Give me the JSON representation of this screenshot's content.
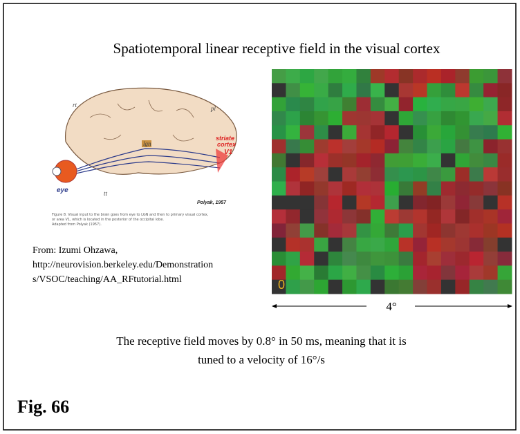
{
  "header": {
    "title": "Spatiotemporal linear receptive field in the visual cortex"
  },
  "brain_figure": {
    "labels": {
      "rt": "rt",
      "pl": "pl",
      "lgn": "lgn",
      "tt": "tt",
      "eye": "eye",
      "striate": "striate",
      "cortex": "cortex",
      "v1": "V1",
      "source": "Polyak, 1957"
    },
    "caption": [
      "Figure 8. Visual input to the brain goes from eye to LGN and then to primary visual cortex,",
      "or area V1, which is located in the posterior of the occipital lobe.",
      "Adapted from Polyak (1957)."
    ]
  },
  "credit": {
    "lines": [
      "From: Izumi Ohzawa,",
      "http://neurovision.berkeley.edu/Demonstration",
      "s/VSOC/teaching/AA_RFtutorial.html"
    ]
  },
  "receptive_field": {
    "frame_label": "0",
    "scale_label": "4°"
  },
  "description": {
    "lines": [
      "The receptive field moves by 0.8° in 50 ms, meaning that it is",
      "tuned to a velocity of 16°/s"
    ]
  },
  "figure_label": "Fig. 66"
}
